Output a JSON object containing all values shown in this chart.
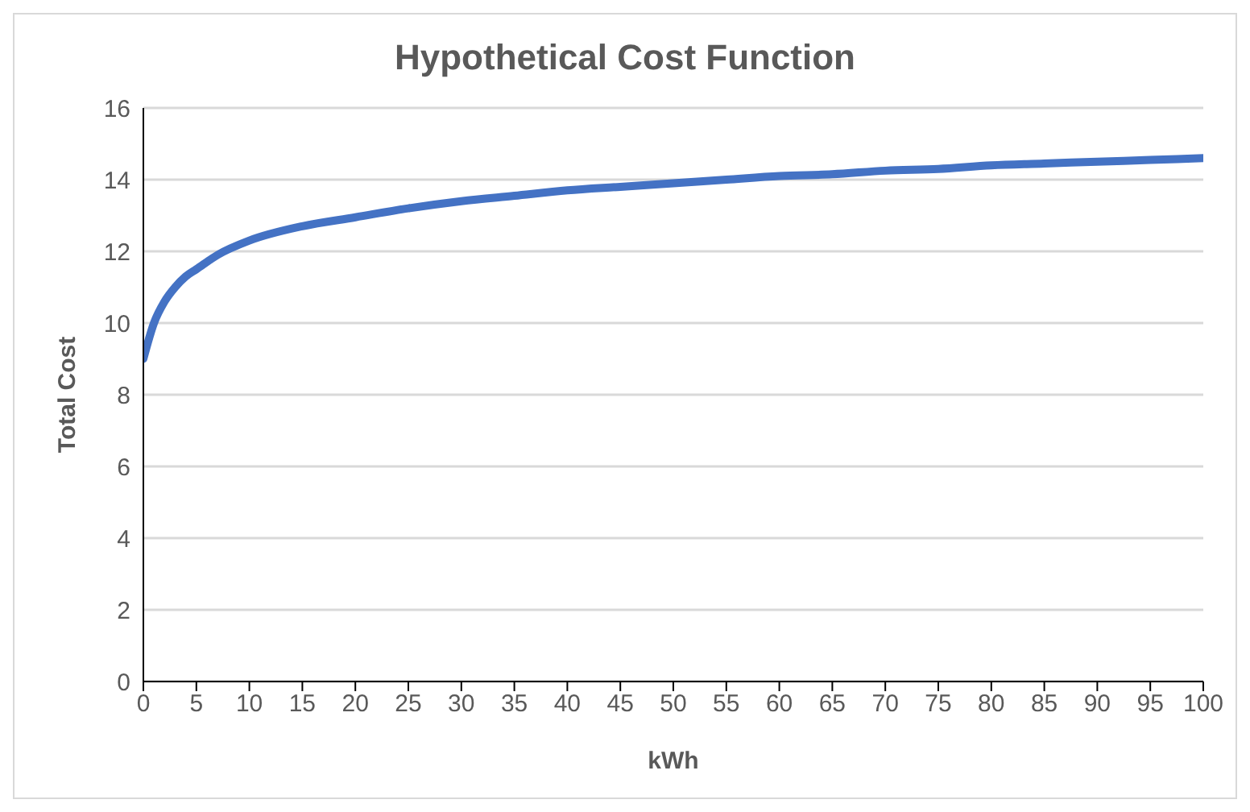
{
  "chart_data": {
    "type": "line",
    "title": "Hypothetical Cost Function",
    "xlabel": "kWh",
    "ylabel": "Total Cost",
    "x": [
      0,
      1,
      2,
      3,
      4,
      5,
      7,
      10,
      15,
      20,
      25,
      30,
      35,
      40,
      45,
      50,
      55,
      60,
      65,
      70,
      75,
      80,
      85,
      90,
      95,
      100
    ],
    "series": [
      {
        "color": "#4472c4",
        "values": [
          9,
          10.0,
          10.6,
          11.0,
          11.3,
          11.5,
          11.9,
          12.3,
          12.7,
          12.95,
          13.2,
          13.4,
          13.55,
          13.7,
          13.8,
          13.9,
          14.0,
          14.1,
          14.15,
          14.25,
          14.3,
          14.4,
          14.45,
          14.5,
          14.55,
          14.6
        ]
      }
    ],
    "xlim": [
      0,
      100
    ],
    "xticks": [
      0,
      5,
      10,
      15,
      20,
      25,
      30,
      35,
      40,
      45,
      50,
      55,
      60,
      65,
      70,
      75,
      80,
      85,
      90,
      95,
      100
    ],
    "ylim": [
      0,
      16
    ],
    "yticks": [
      0,
      2,
      4,
      6,
      8,
      10,
      12,
      14,
      16
    ],
    "grid": "y",
    "marker": "none",
    "line_style": "solid",
    "legend": false
  }
}
